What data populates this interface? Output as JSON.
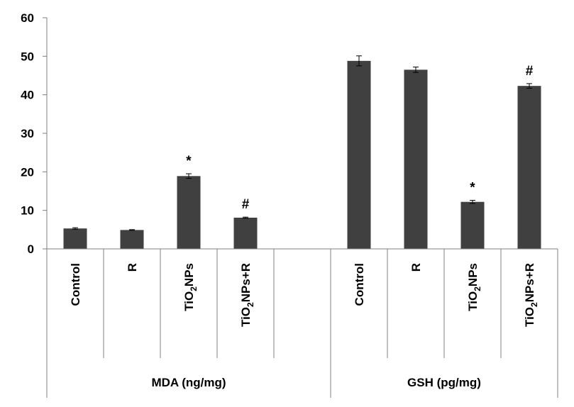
{
  "chart_data": {
    "type": "bar",
    "ylim": [
      0,
      60
    ],
    "yticks": [
      0,
      10,
      20,
      30,
      40,
      50,
      60
    ],
    "bar_color": "#404040",
    "groups": [
      {
        "label": "MDA (ng/mg)",
        "bars": [
          {
            "category": "Control",
            "sub": "",
            "tail": "",
            "value": 5.3,
            "error": 0.2,
            "annotation": ""
          },
          {
            "category": "R",
            "sub": "",
            "tail": "",
            "value": 4.9,
            "error": 0.1,
            "annotation": ""
          },
          {
            "category": "TiO",
            "sub": "2",
            "tail": "NPs",
            "value": 18.9,
            "error": 0.6,
            "annotation": "*"
          },
          {
            "category": "TiO",
            "sub": "2",
            "tail": "NPs+R",
            "value": 8.1,
            "error": 0.15,
            "annotation": "#"
          }
        ]
      },
      {
        "label": "GSH (pg/mg)",
        "bars": [
          {
            "category": "Control",
            "sub": "",
            "tail": "",
            "value": 48.8,
            "error": 1.3,
            "annotation": ""
          },
          {
            "category": "R",
            "sub": "",
            "tail": "",
            "value": 46.5,
            "error": 0.7,
            "annotation": ""
          },
          {
            "category": "TiO",
            "sub": "2",
            "tail": "NPs",
            "value": 12.2,
            "error": 0.4,
            "annotation": "*"
          },
          {
            "category": "TiO",
            "sub": "2",
            "tail": "NPs+R",
            "value": 42.3,
            "error": 0.6,
            "annotation": "#"
          }
        ]
      }
    ]
  }
}
